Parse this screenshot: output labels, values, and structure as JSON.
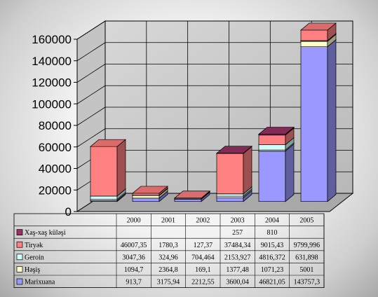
{
  "chart_data": {
    "type": "bar",
    "stacked": true,
    "three_d": true,
    "categories": [
      "2000",
      "2001",
      "2002",
      "2003",
      "2004",
      "2005"
    ],
    "ylim": [
      0,
      160000
    ],
    "yticks": [
      0,
      20000,
      40000,
      60000,
      80000,
      100000,
      120000,
      140000,
      160000
    ],
    "ytick_labels": [
      "0",
      "20000",
      "40000",
      "60000",
      "80000",
      "100000",
      "120000",
      "140000",
      "160000"
    ],
    "grid": true,
    "legend_placement": "data-table-left",
    "series": [
      {
        "name": "Marixuana",
        "color": "#9999ff",
        "values": [
          913.7,
          3175.94,
          2212.55,
          3600.04,
          46821.05,
          143757.3
        ],
        "labels": [
          "913,7",
          "3175,94",
          "2212,55",
          "3600,04",
          "46821,05",
          "143757,3"
        ]
      },
      {
        "name": "Həşiş",
        "color": "#ffffcc",
        "values": [
          1094.7,
          2364.8,
          169.1,
          1377.48,
          1071.23,
          5001
        ],
        "labels": [
          "1094,7",
          "2364,8",
          "169,1",
          "1377,48",
          "1071,23",
          "5001"
        ]
      },
      {
        "name": "Geroin",
        "color": "#ccffff",
        "values": [
          3047.36,
          324.96,
          704.464,
          2153.927,
          4816.372,
          631.898
        ],
        "labels": [
          "3047,36",
          "324,96",
          "704,464",
          "2153,927",
          "4816,372",
          "631,898"
        ]
      },
      {
        "name": "Tiryək",
        "color": "#ff8080",
        "values": [
          46007.35,
          1780.3,
          127.37,
          37484.34,
          9015.43,
          9799.996
        ],
        "labels": [
          "46007,35",
          "1780,3",
          "127,37",
          "37484,34",
          "9015,43",
          "9799,996"
        ]
      },
      {
        "name": "Xaş-xaş küləşi",
        "color": "#993366",
        "values": [
          null,
          null,
          null,
          257,
          810,
          null
        ],
        "labels": [
          "",
          "",
          "",
          "257",
          "810",
          ""
        ]
      }
    ]
  }
}
